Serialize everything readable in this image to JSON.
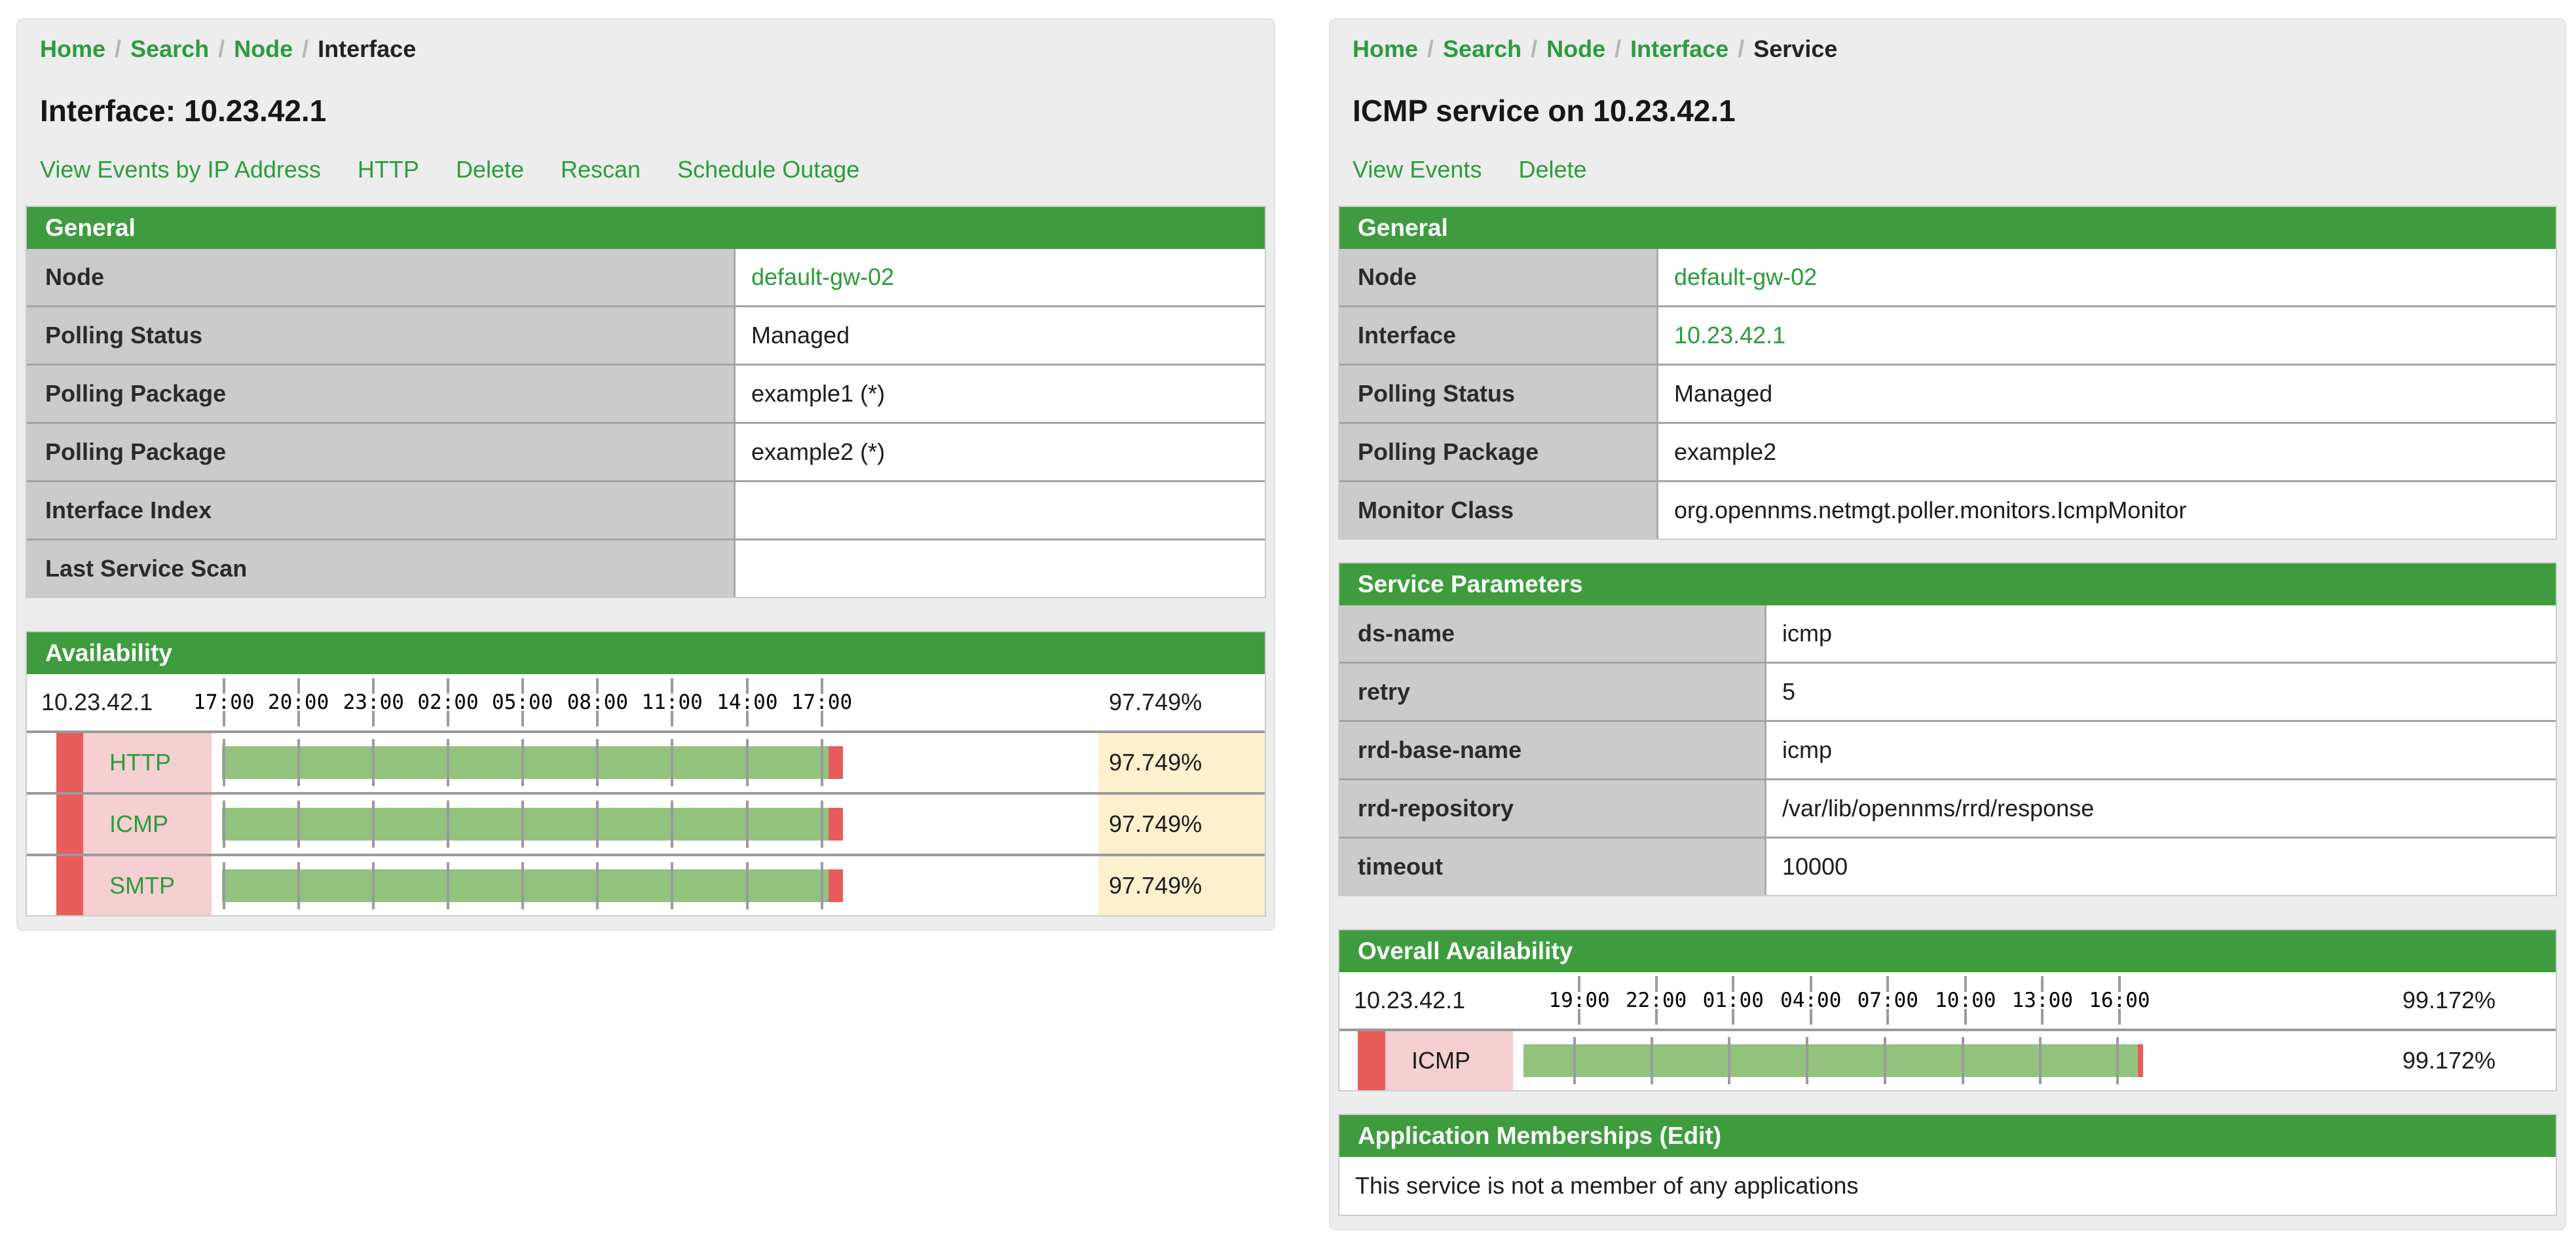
{
  "colors": {
    "header_green": "#3e9c3e",
    "link_green": "#2b9c3b",
    "bar_green": "#93c27f",
    "bar_red": "#e85c5c",
    "service_pink": "#f5cfd2",
    "percent_yellow": "#fcf0cd",
    "label_grey": "#cbcbcb"
  },
  "left": {
    "breadcrumb": {
      "separator": "/",
      "items": [
        "Home",
        "Search",
        "Node",
        "Interface"
      ],
      "current": "Interface"
    },
    "title": "Interface: 10.23.42.1",
    "actions": [
      "View Events by IP Address",
      "HTTP",
      "Delete",
      "Rescan",
      "Schedule Outage"
    ],
    "general": {
      "title": "General",
      "rows": [
        {
          "label": "Node",
          "value": "default-gw-02"
        },
        {
          "label": "Polling Status",
          "value": "Managed"
        },
        {
          "label": "Polling Package",
          "value": "example1 (*)"
        },
        {
          "label": "Polling Package",
          "value": "example2 (*)"
        },
        {
          "label": "Interface Index",
          "value": ""
        },
        {
          "label": "Last Service Scan",
          "value": ""
        }
      ]
    },
    "availability": {
      "title": "Availability",
      "ip": "10.23.42.1",
      "overall_label": "97.749%",
      "ticks": [
        {
          "t": "17:00",
          "x": 0.3
        },
        {
          "t": "20:00",
          "x": 12.3
        },
        {
          "t": "23:00",
          "x": 24.4
        },
        {
          "t": "02:00",
          "x": 36.4
        },
        {
          "t": "05:00",
          "x": 48.4
        },
        {
          "t": "08:00",
          "x": 60.5
        },
        {
          "t": "11:00",
          "x": 72.5
        },
        {
          "t": "14:00",
          "x": 84.6
        },
        {
          "t": "17:00",
          "x": 96.6
        }
      ],
      "services": [
        {
          "name": "HTTP",
          "pct": 97.749,
          "pct_label": "97.749%"
        },
        {
          "name": "ICMP",
          "pct": 97.749,
          "pct_label": "97.749%"
        },
        {
          "name": "SMTP",
          "pct": 97.749,
          "pct_label": "97.749%"
        }
      ]
    }
  },
  "right": {
    "breadcrumb": {
      "separator": "/",
      "items": [
        "Home",
        "Search",
        "Node",
        "Interface",
        "Service"
      ],
      "current": "Service"
    },
    "title": "ICMP service on 10.23.42.1",
    "actions": [
      "View Events",
      "Delete"
    ],
    "general": {
      "title": "General",
      "rows": [
        {
          "label": "Node",
          "value": "default-gw-02"
        },
        {
          "label": "Interface",
          "value": "10.23.42.1"
        },
        {
          "label": "Polling Status",
          "value": "Managed"
        },
        {
          "label": "Polling Package",
          "value": "example2"
        },
        {
          "label": "Monitor Class",
          "value": "org.opennms.netmgt.poller.monitors.IcmpMonitor"
        }
      ]
    },
    "service_parameters": {
      "title": "Service Parameters",
      "rows": [
        {
          "label": "ds-name",
          "value": "icmp"
        },
        {
          "label": "retry",
          "value": "5"
        },
        {
          "label": "rrd-base-name",
          "value": "icmp"
        },
        {
          "label": "rrd-repository",
          "value": "/var/lib/opennms/rrd/response"
        },
        {
          "label": "timeout",
          "value": "10000"
        }
      ]
    },
    "availability": {
      "title": "Overall Availability",
      "ip": "10.23.42.1",
      "overall_label": "99.172%",
      "ticks": [
        {
          "t": "19:00",
          "x": 8.2
        },
        {
          "t": "22:00",
          "x": 20.7
        },
        {
          "t": "01:00",
          "x": 33.2
        },
        {
          "t": "04:00",
          "x": 45.8
        },
        {
          "t": "07:00",
          "x": 58.3
        },
        {
          "t": "10:00",
          "x": 70.9
        },
        {
          "t": "13:00",
          "x": 83.4
        },
        {
          "t": "16:00",
          "x": 95.9
        }
      ],
      "services": [
        {
          "name": "ICMP",
          "pct": 99.172,
          "pct_label": "99.172%"
        }
      ]
    },
    "applications": {
      "title": "Application Memberships",
      "edit_label": "(Edit)",
      "empty_text": "This service is not a member of any applications"
    }
  }
}
